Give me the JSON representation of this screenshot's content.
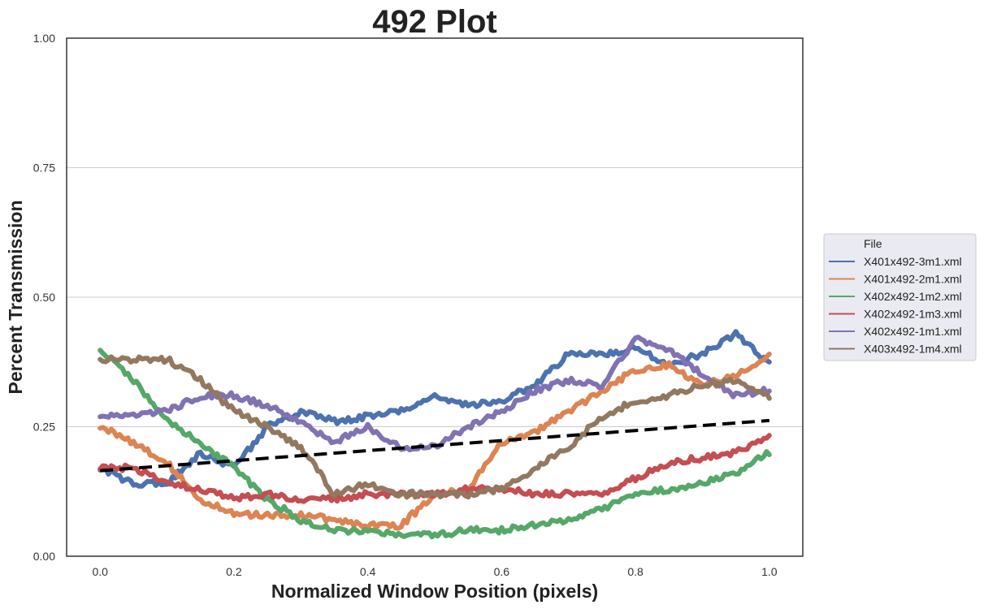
{
  "chart_data": {
    "type": "line",
    "title": "492 Plot",
    "xlabel": "Normalized Window Position (pixels)",
    "ylabel": "Percent Transmission",
    "xlim": [
      -0.05,
      1.05
    ],
    "ylim": [
      0.0,
      1.0
    ],
    "xticks": [
      0.0,
      0.2,
      0.4,
      0.6,
      0.8,
      1.0
    ],
    "xtick_labels": [
      "0.0",
      "0.2",
      "0.4",
      "0.6",
      "0.8",
      "1.0"
    ],
    "yticks": [
      0.0,
      0.25,
      0.5,
      0.75,
      1.0
    ],
    "ytick_labels": [
      "0.00",
      "0.25",
      "0.50",
      "0.75",
      "1.00"
    ],
    "grid": "horizontal",
    "legend_title": "File",
    "legend_position": "outside-right",
    "x": [
      0.0,
      0.05,
      0.1,
      0.15,
      0.2,
      0.25,
      0.3,
      0.35,
      0.4,
      0.45,
      0.5,
      0.55,
      0.6,
      0.65,
      0.7,
      0.75,
      0.8,
      0.85,
      0.9,
      0.95,
      1.0
    ],
    "series": [
      {
        "name": "X401x492-3m1.xml",
        "color": "#4c72b0",
        "values": [
          0.17,
          0.14,
          0.14,
          0.2,
          0.17,
          0.25,
          0.28,
          0.26,
          0.27,
          0.28,
          0.31,
          0.29,
          0.3,
          0.33,
          0.39,
          0.39,
          0.4,
          0.37,
          0.39,
          0.43,
          0.37
        ]
      },
      {
        "name": "X401x492-2m1.xml",
        "color": "#dd8452",
        "values": [
          0.25,
          0.22,
          0.18,
          0.11,
          0.08,
          0.08,
          0.08,
          0.07,
          0.06,
          0.06,
          0.12,
          0.13,
          0.22,
          0.24,
          0.28,
          0.32,
          0.36,
          0.37,
          0.33,
          0.35,
          0.39
        ]
      },
      {
        "name": "X402x492-1m2.xml",
        "color": "#55a868",
        "values": [
          0.4,
          0.34,
          0.26,
          0.22,
          0.17,
          0.11,
          0.07,
          0.05,
          0.05,
          0.04,
          0.04,
          0.05,
          0.05,
          0.06,
          0.07,
          0.09,
          0.12,
          0.13,
          0.14,
          0.16,
          0.2
        ]
      },
      {
        "name": "X402x492-1m3.xml",
        "color": "#c44e52",
        "values": [
          0.17,
          0.17,
          0.14,
          0.13,
          0.11,
          0.12,
          0.11,
          0.11,
          0.12,
          0.12,
          0.12,
          0.13,
          0.13,
          0.12,
          0.12,
          0.12,
          0.15,
          0.18,
          0.19,
          0.2,
          0.23
        ]
      },
      {
        "name": "X402x492-1m1.xml",
        "color": "#8172b3",
        "values": [
          0.27,
          0.27,
          0.28,
          0.31,
          0.31,
          0.29,
          0.26,
          0.22,
          0.25,
          0.21,
          0.21,
          0.25,
          0.28,
          0.32,
          0.34,
          0.33,
          0.42,
          0.4,
          0.35,
          0.31,
          0.32
        ]
      },
      {
        "name": "X403x492-1m4.xml",
        "color": "#937860",
        "values": [
          0.38,
          0.38,
          0.38,
          0.34,
          0.28,
          0.25,
          0.21,
          0.12,
          0.14,
          0.12,
          0.12,
          0.12,
          0.13,
          0.17,
          0.21,
          0.27,
          0.3,
          0.31,
          0.33,
          0.34,
          0.31
        ]
      }
    ],
    "trendline": {
      "style": "dashed",
      "color": "#000000",
      "x": [
        0.0,
        1.0
      ],
      "values": [
        0.165,
        0.262
      ]
    }
  }
}
